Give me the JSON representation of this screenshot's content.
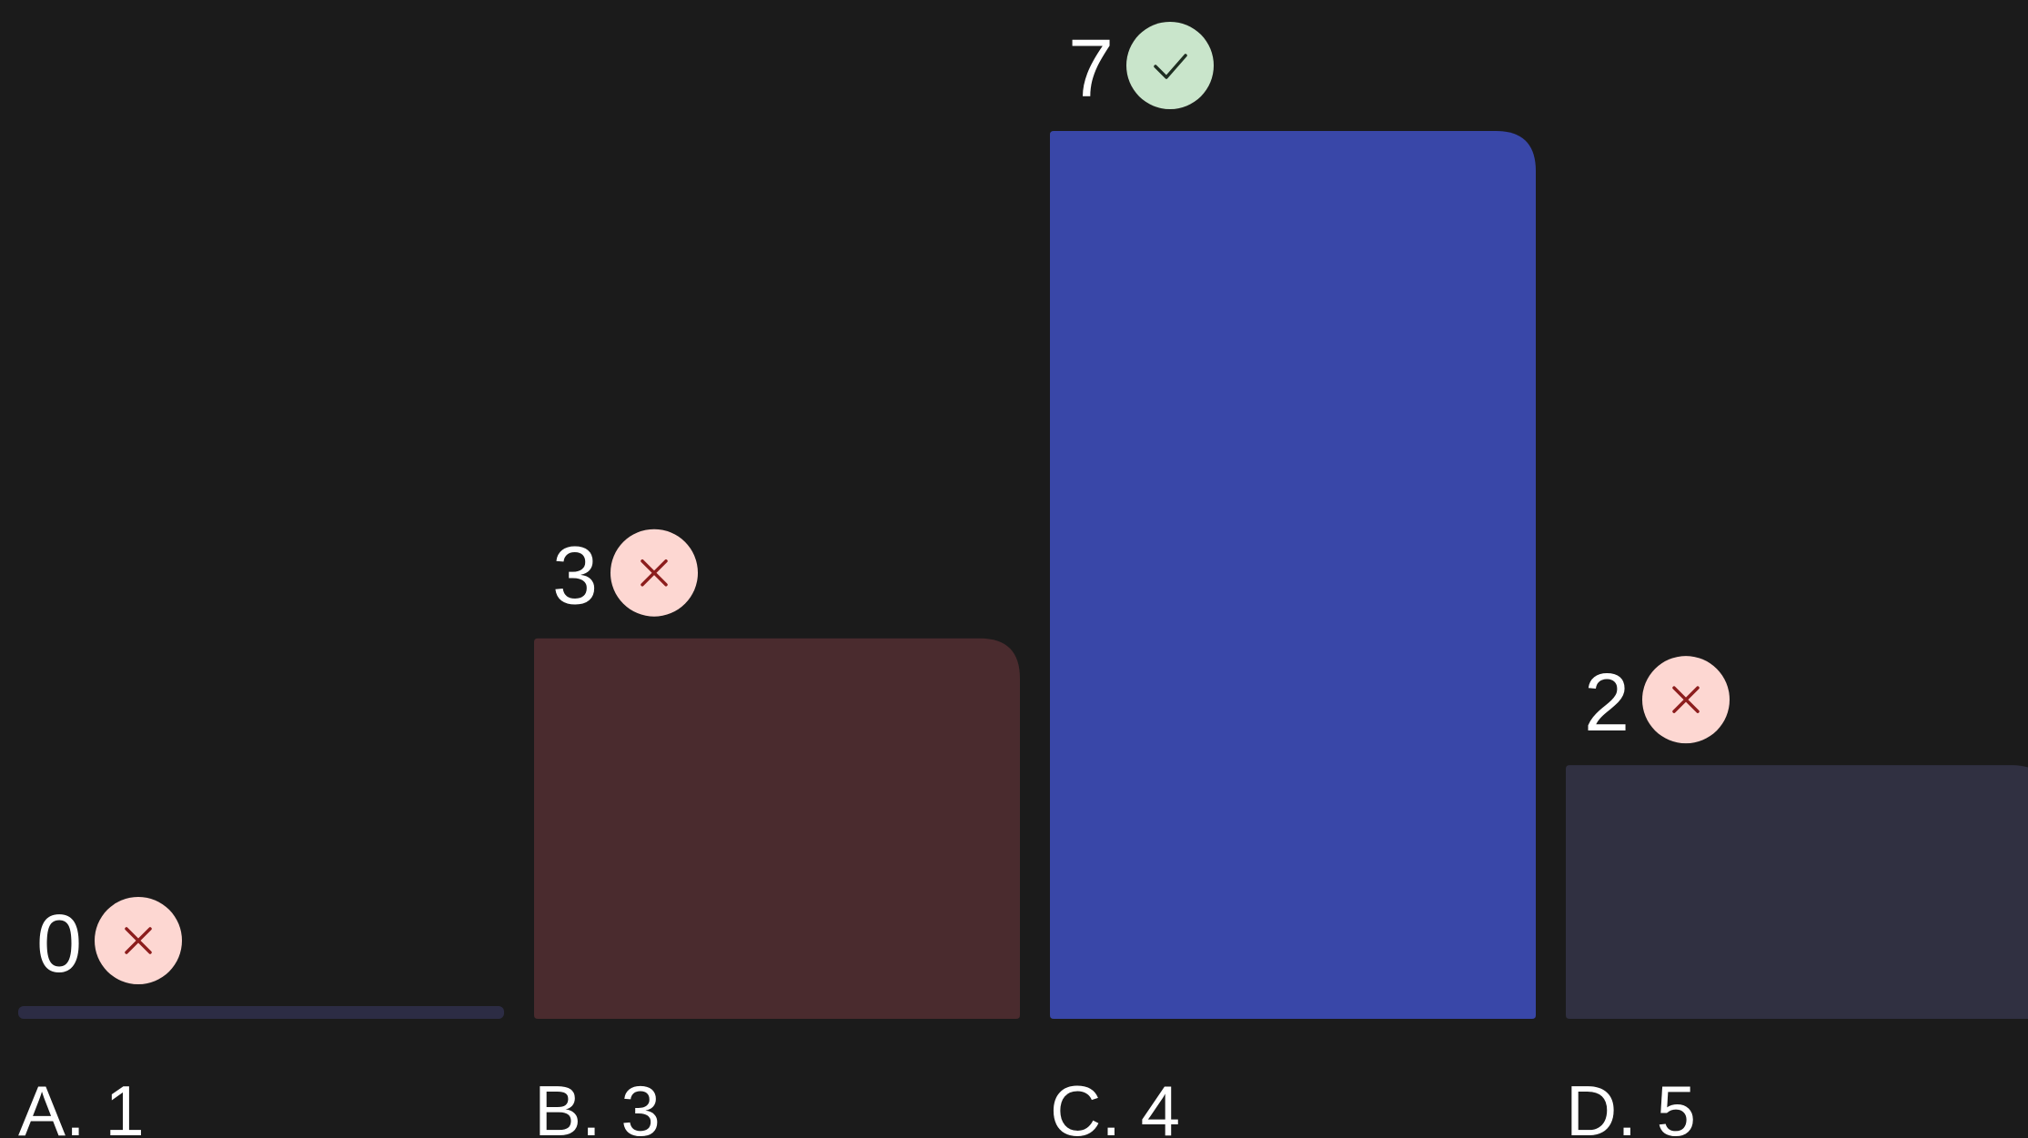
{
  "chart_data": {
    "type": "bar",
    "categories": [
      "A. 1",
      "B. 3",
      "C. 4",
      "D. 5"
    ],
    "values": [
      0,
      3,
      7,
      2
    ],
    "value_labels": [
      "0",
      "3",
      "7",
      "2"
    ],
    "status": [
      "incorrect",
      "incorrect",
      "correct",
      "incorrect"
    ],
    "status_icons": [
      "close-icon",
      "close-icon",
      "check-icon",
      "close-icon"
    ],
    "bar_colors": [
      "#2c2c44",
      "#4a2b2e",
      "#3947a8",
      "#303041"
    ],
    "status_colors": {
      "incorrect": {
        "bg": "#fdd7d2",
        "fg": "#8c1d1d"
      },
      "correct": {
        "bg": "#c9e5cb",
        "fg": "#1e2d21"
      }
    },
    "ylim": [
      0,
      7
    ],
    "grid": false,
    "legend": "none"
  }
}
